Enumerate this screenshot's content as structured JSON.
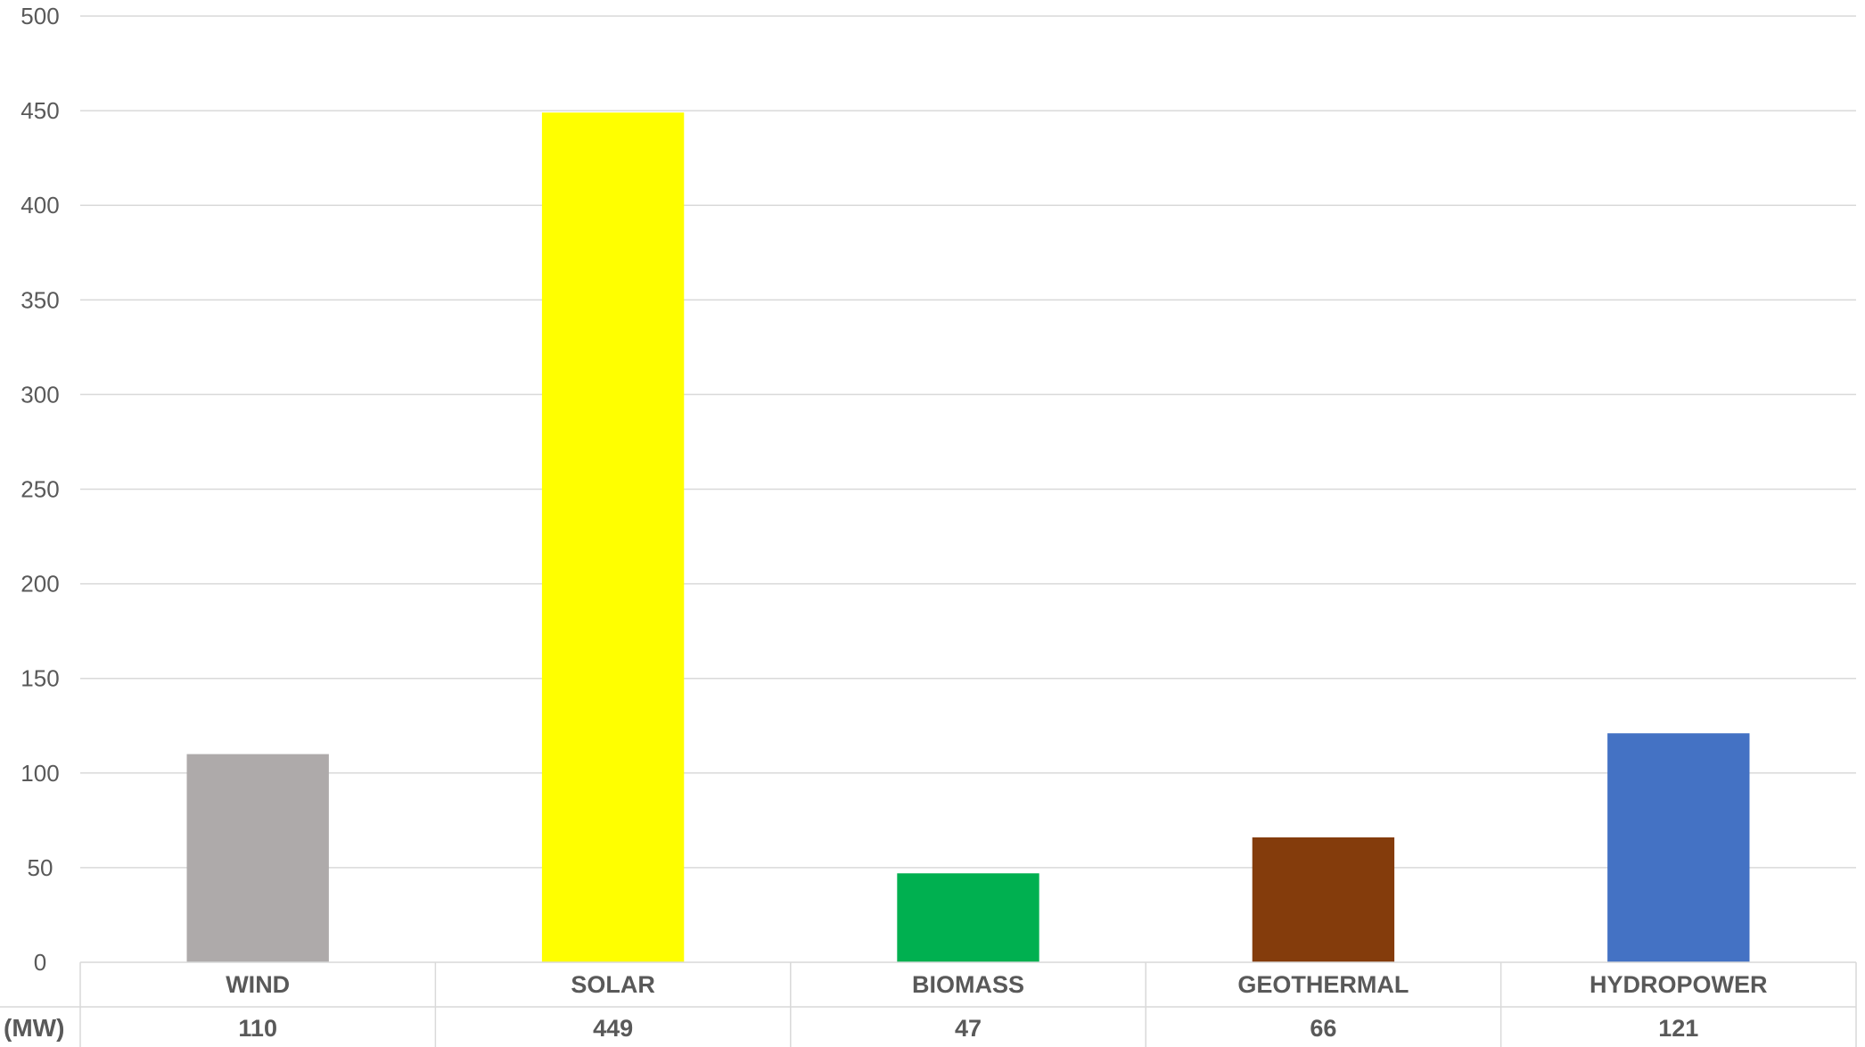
{
  "chart_data": {
    "type": "bar",
    "title": "",
    "xlabel": "",
    "ylabel": "",
    "ylim": [
      0,
      500
    ],
    "yticks": [
      0,
      50,
      100,
      150,
      200,
      250,
      300,
      350,
      400,
      450,
      500
    ],
    "grid": true,
    "legend": "none",
    "categories": [
      "WIND",
      "SOLAR",
      "BIOMASS",
      "GEOTHERMAL",
      "HYDROPOWER"
    ],
    "values": [
      110,
      449,
      47,
      66,
      121
    ],
    "colors": [
      "#aeaaaa",
      "#ffff00",
      "#00b050",
      "#843c0c",
      "#4472c4"
    ],
    "data_table": {
      "row_label": "(MW)",
      "values": [
        "110",
        "449",
        "47",
        "66",
        "121"
      ]
    }
  }
}
